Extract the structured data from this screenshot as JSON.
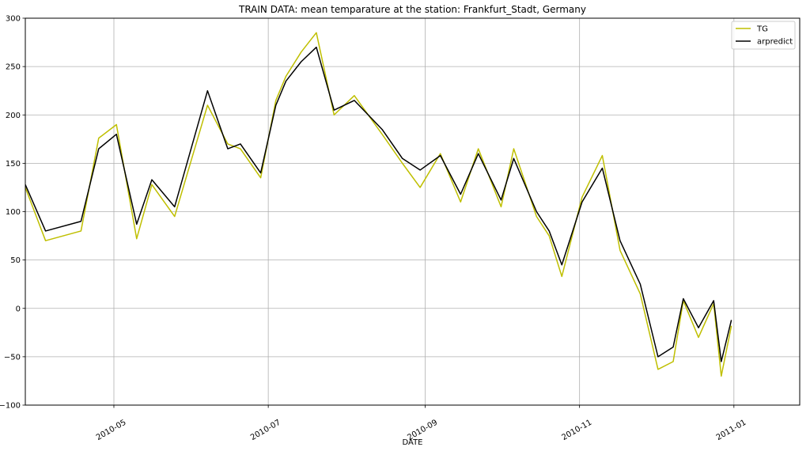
{
  "chart_data": {
    "type": "line",
    "title": "TRAIN DATA: mean temparature at the station: Frankfurt_Stadt, Germany",
    "xlabel": "DATE",
    "ylabel": "",
    "xlim": [
      "2010-03-27",
      "2011-01-27"
    ],
    "ylim": [
      -100,
      300
    ],
    "y_ticks": [
      -100,
      -50,
      0,
      50,
      100,
      150,
      200,
      250,
      300
    ],
    "x_ticks": [
      {
        "date": "2010-05-01",
        "label": "2010-05"
      },
      {
        "date": "2010-07-01",
        "label": "2010-07"
      },
      {
        "date": "2010-09-01",
        "label": "2010-09"
      },
      {
        "date": "2010-11-01",
        "label": "2010-11"
      },
      {
        "date": "2011-01-01",
        "label": "2011-01"
      }
    ],
    "grid": true,
    "legend_position": "top-right",
    "series": [
      {
        "name": "TG",
        "color": "#bfbf00",
        "x": [
          "2010-03-27",
          "2010-04-04",
          "2010-04-18",
          "2010-04-25",
          "2010-05-02",
          "2010-05-10",
          "2010-05-16",
          "2010-05-25",
          "2010-06-07",
          "2010-06-15",
          "2010-06-20",
          "2010-06-28",
          "2010-07-04",
          "2010-07-08",
          "2010-07-14",
          "2010-07-20",
          "2010-07-27",
          "2010-08-04",
          "2010-08-15",
          "2010-08-23",
          "2010-08-30",
          "2010-09-07",
          "2010-09-15",
          "2010-09-22",
          "2010-10-01",
          "2010-10-06",
          "2010-10-15",
          "2010-10-20",
          "2010-10-25",
          "2010-11-02",
          "2010-11-10",
          "2010-11-17",
          "2010-11-25",
          "2010-12-02",
          "2010-12-08",
          "2010-12-12",
          "2010-12-18",
          "2010-12-24",
          "2010-12-27",
          "2010-12-31"
        ],
        "values": [
          125,
          70,
          80,
          176,
          190,
          72,
          128,
          95,
          210,
          170,
          165,
          135,
          215,
          240,
          265,
          285,
          200,
          220,
          180,
          150,
          125,
          160,
          110,
          165,
          105,
          165,
          95,
          75,
          33,
          115,
          158,
          60,
          15,
          -63,
          -55,
          8,
          -30,
          5,
          -70,
          -18
        ]
      },
      {
        "name": "arpredict",
        "color": "#000000",
        "x": [
          "2010-03-27",
          "2010-04-04",
          "2010-04-18",
          "2010-04-25",
          "2010-05-02",
          "2010-05-10",
          "2010-05-16",
          "2010-05-25",
          "2010-06-07",
          "2010-06-15",
          "2010-06-20",
          "2010-06-28",
          "2010-07-04",
          "2010-07-08",
          "2010-07-14",
          "2010-07-20",
          "2010-07-27",
          "2010-08-04",
          "2010-08-15",
          "2010-08-23",
          "2010-08-30",
          "2010-09-07",
          "2010-09-15",
          "2010-09-22",
          "2010-10-01",
          "2010-10-06",
          "2010-10-15",
          "2010-10-20",
          "2010-10-25",
          "2010-11-02",
          "2010-11-10",
          "2010-11-17",
          "2010-11-25",
          "2010-12-02",
          "2010-12-08",
          "2010-12-12",
          "2010-12-18",
          "2010-12-24",
          "2010-12-27",
          "2010-12-31"
        ],
        "values": [
          128,
          80,
          90,
          165,
          180,
          87,
          133,
          105,
          225,
          165,
          170,
          140,
          210,
          235,
          255,
          270,
          205,
          215,
          185,
          155,
          143,
          158,
          118,
          160,
          112,
          155,
          100,
          80,
          45,
          110,
          145,
          70,
          25,
          -50,
          -40,
          10,
          -20,
          8,
          -55,
          -12
        ]
      }
    ]
  }
}
